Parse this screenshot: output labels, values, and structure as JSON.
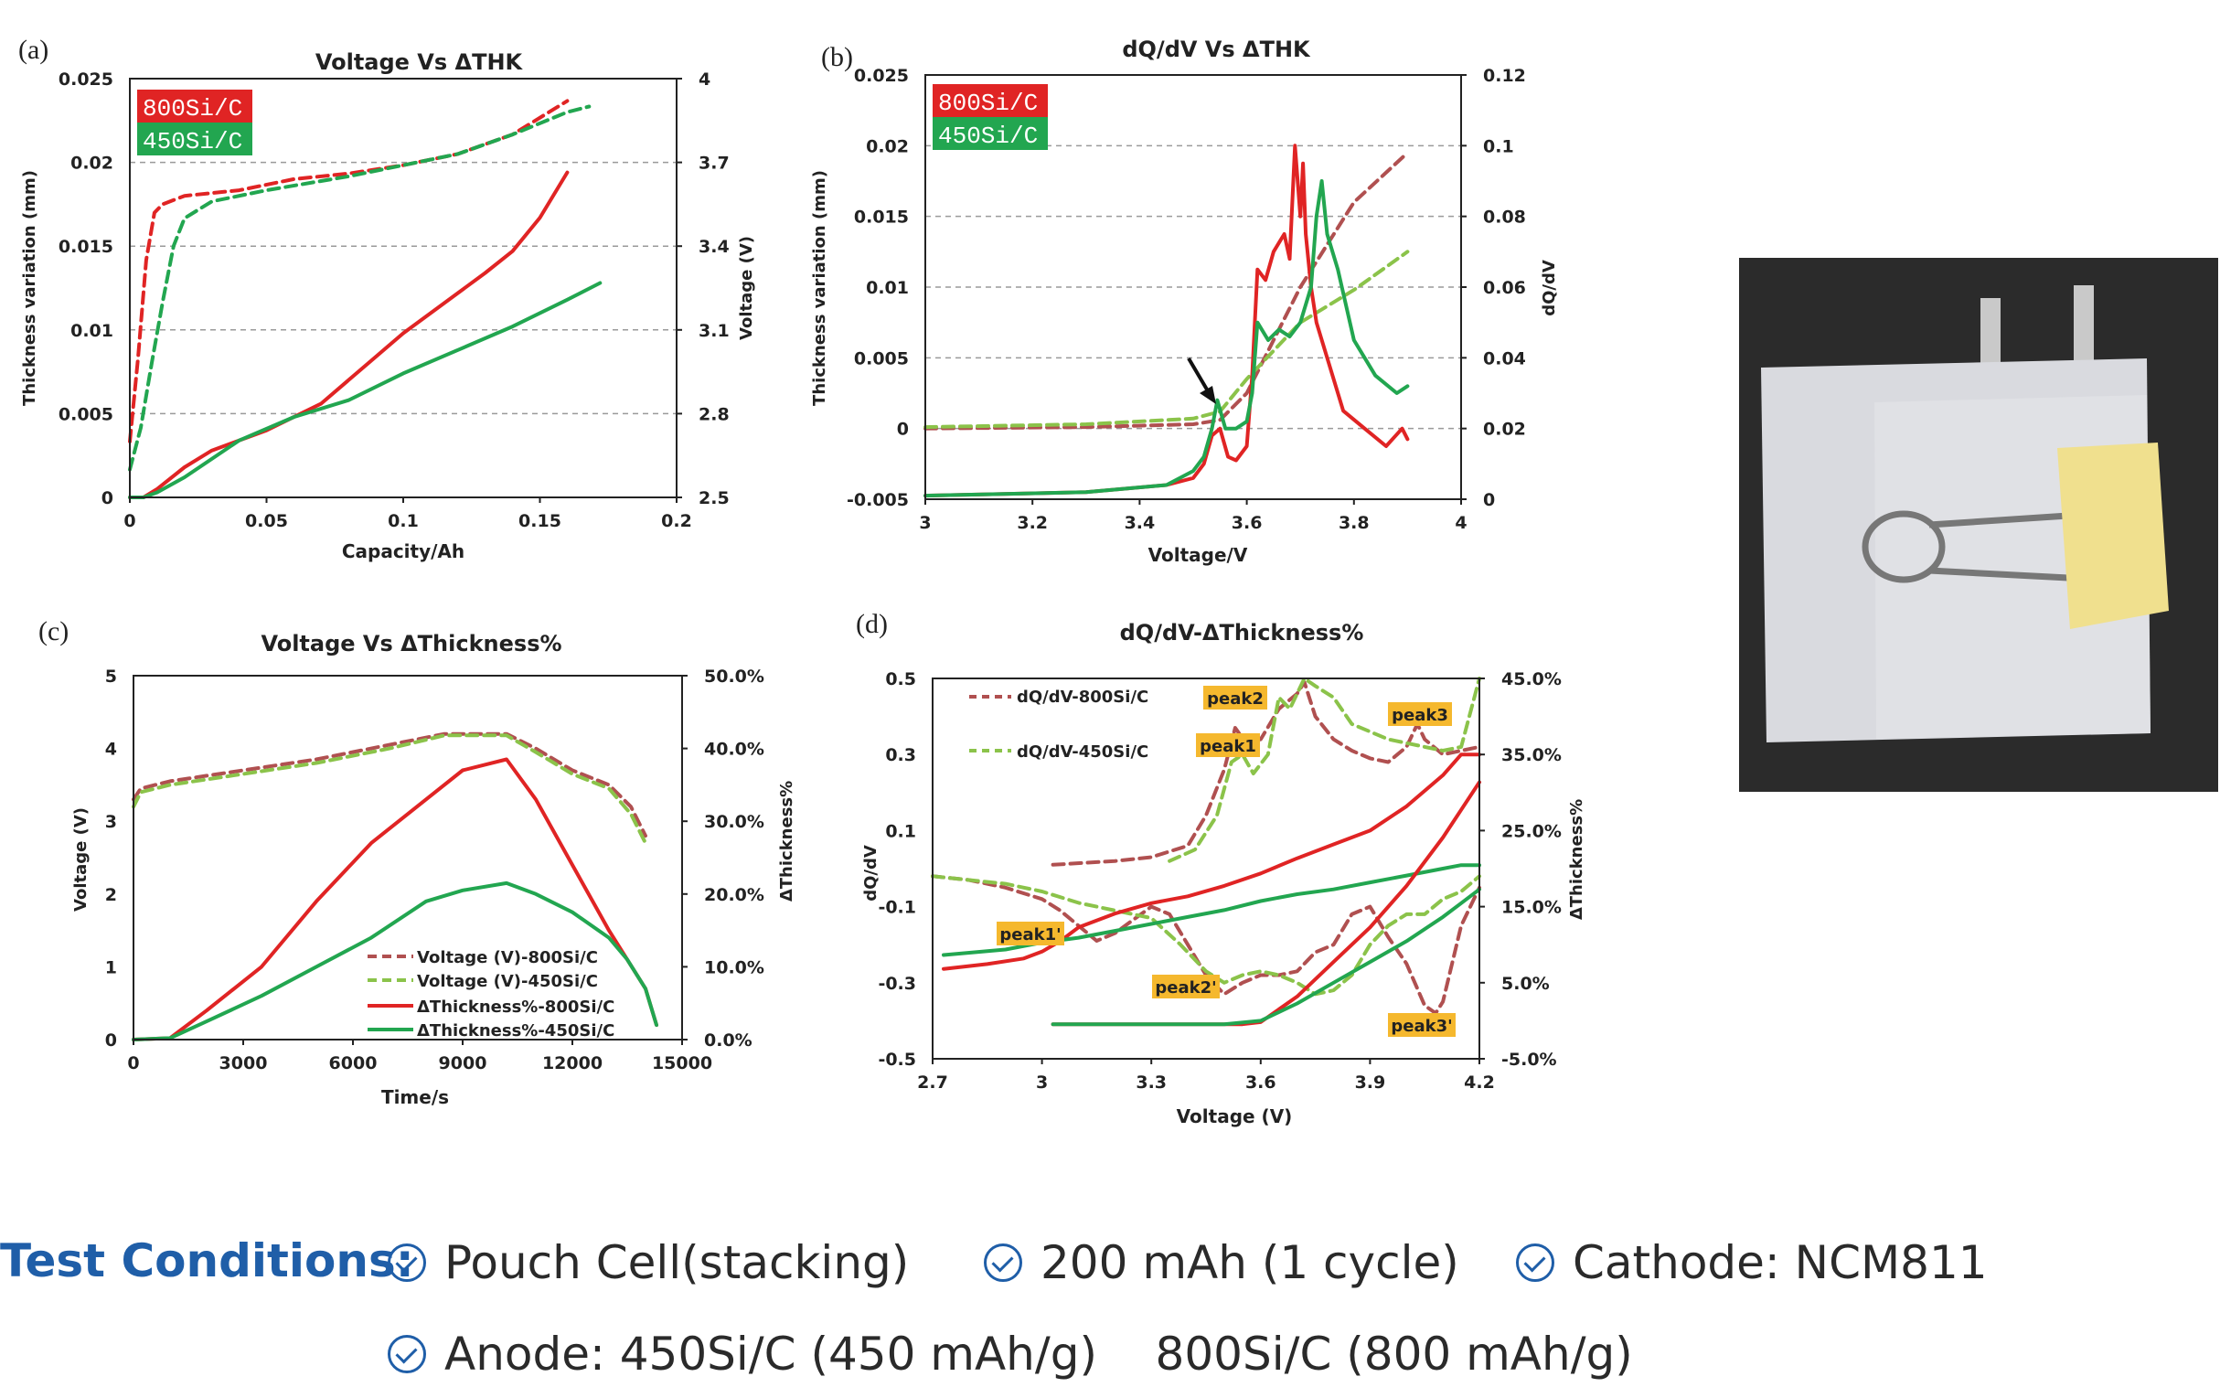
{
  "chart_data": [
    {
      "panel": "(a)",
      "type": "line",
      "title": "Voltage Vs ΔTHK",
      "xlabel": "Capacity/Ah",
      "ylabel": "Thickness variation (mm)",
      "y2label": "Voltage (V)",
      "xlim": [
        0,
        0.2
      ],
      "ylim": [
        0,
        0.025
      ],
      "y2lim": [
        2.5,
        4
      ],
      "xticks": [
        "0",
        "0.05",
        "0.1",
        "0.15",
        "0.2"
      ],
      "yticks": [
        "0",
        "0.005",
        "0.01",
        "0.015",
        "0.02",
        "0.025"
      ],
      "y2ticks": [
        "2.5",
        "2.8",
        "3.1",
        "3.4",
        "3.7",
        "4"
      ],
      "legend": [
        "800Si/C",
        "450Si/C"
      ],
      "series": [
        {
          "key": "thk800",
          "axis": "y",
          "color": "#e02424",
          "dash": false,
          "x": [
            0,
            0.005,
            0.01,
            0.02,
            0.03,
            0.05,
            0.07,
            0.09,
            0.1,
            0.12,
            0.13,
            0.14,
            0.15,
            0.16
          ],
          "y": [
            0,
            0,
            0.0005,
            0.0018,
            0.0028,
            0.004,
            0.0056,
            0.0084,
            0.0098,
            0.0122,
            0.0134,
            0.0147,
            0.0167,
            0.0194
          ]
        },
        {
          "key": "thk450",
          "axis": "y",
          "color": "#22a650",
          "dash": false,
          "x": [
            0,
            0.005,
            0.01,
            0.02,
            0.04,
            0.06,
            0.08,
            0.1,
            0.12,
            0.14,
            0.16,
            0.172
          ],
          "y": [
            0,
            0,
            0.0003,
            0.0012,
            0.0034,
            0.0048,
            0.0058,
            0.0074,
            0.0088,
            0.0102,
            0.0118,
            0.0128
          ]
        },
        {
          "key": "v800",
          "axis": "y2",
          "color": "#e02424",
          "dash": true,
          "x": [
            0,
            0.003,
            0.006,
            0.009,
            0.012,
            0.02,
            0.04,
            0.06,
            0.08,
            0.1,
            0.12,
            0.14,
            0.16
          ],
          "y": [
            2.7,
            3.0,
            3.35,
            3.52,
            3.55,
            3.58,
            3.6,
            3.64,
            3.66,
            3.69,
            3.73,
            3.8,
            3.92
          ]
        },
        {
          "key": "v450",
          "axis": "y2",
          "color": "#22a650",
          "dash": true,
          "x": [
            0,
            0.004,
            0.008,
            0.012,
            0.016,
            0.02,
            0.03,
            0.05,
            0.08,
            0.1,
            0.12,
            0.14,
            0.16,
            0.168
          ],
          "y": [
            2.6,
            2.75,
            2.98,
            3.2,
            3.4,
            3.5,
            3.56,
            3.6,
            3.65,
            3.69,
            3.73,
            3.8,
            3.88,
            3.9
          ]
        }
      ]
    },
    {
      "panel": "(b)",
      "type": "line",
      "title": "dQ/dV Vs ΔTHK",
      "xlabel": "Voltage/V",
      "ylabel": "Thickness variation (mm)",
      "y2label": "dQ/dV",
      "xlim": [
        3,
        4
      ],
      "ylim": [
        -0.005,
        0.025
      ],
      "y2lim": [
        0,
        0.12
      ],
      "xticks": [
        "3",
        "3.2",
        "3.4",
        "3.6",
        "3.8",
        "4"
      ],
      "yticks": [
        "-0.005",
        "0",
        "0.005",
        "0.01",
        "0.015",
        "0.02",
        "0.025"
      ],
      "y2ticks": [
        "0",
        "0.02",
        "0.04",
        "0.06",
        "0.08",
        "0.1",
        "0.12"
      ],
      "legend": [
        "800Si/C",
        "450Si/C"
      ],
      "series": [
        {
          "key": "thk800",
          "axis": "y",
          "color": "#b05050",
          "dash": true,
          "x": [
            3,
            3.3,
            3.5,
            3.55,
            3.6,
            3.7,
            3.8,
            3.9
          ],
          "y": [
            0,
            0.0001,
            0.0003,
            0.0006,
            0.0025,
            0.01,
            0.016,
            0.0195
          ]
        },
        {
          "key": "thk450",
          "axis": "y",
          "color": "#8bc34a",
          "dash": true,
          "x": [
            3,
            3.3,
            3.5,
            3.55,
            3.6,
            3.7,
            3.8,
            3.9
          ],
          "y": [
            0.0001,
            0.0003,
            0.0007,
            0.0012,
            0.0035,
            0.0075,
            0.0098,
            0.0125
          ]
        },
        {
          "key": "dq800",
          "axis": "y2",
          "color": "#e02424",
          "dash": false,
          "x": [
            3,
            3.3,
            3.45,
            3.5,
            3.52,
            3.535,
            3.55,
            3.565,
            3.58,
            3.6,
            3.61,
            3.62,
            3.635,
            3.65,
            3.67,
            3.68,
            3.69,
            3.7,
            3.705,
            3.71,
            3.72,
            3.73,
            3.75,
            3.78,
            3.82,
            3.86,
            3.89,
            3.9
          ],
          "y": [
            0.001,
            0.002,
            0.004,
            0.006,
            0.01,
            0.018,
            0.02,
            0.012,
            0.011,
            0.015,
            0.035,
            0.065,
            0.062,
            0.07,
            0.075,
            0.068,
            0.1,
            0.08,
            0.095,
            0.075,
            0.06,
            0.05,
            0.04,
            0.025,
            0.02,
            0.015,
            0.02,
            0.017
          ]
        },
        {
          "key": "dq450",
          "axis": "y2",
          "color": "#22a650",
          "dash": false,
          "x": [
            3,
            3.3,
            3.45,
            3.5,
            3.52,
            3.535,
            3.545,
            3.56,
            3.58,
            3.6,
            3.61,
            3.62,
            3.64,
            3.66,
            3.68,
            3.7,
            3.72,
            3.73,
            3.74,
            3.75,
            3.77,
            3.8,
            3.84,
            3.88,
            3.9
          ],
          "y": [
            0.001,
            0.002,
            0.004,
            0.008,
            0.012,
            0.02,
            0.028,
            0.02,
            0.02,
            0.022,
            0.03,
            0.05,
            0.045,
            0.048,
            0.046,
            0.05,
            0.06,
            0.08,
            0.09,
            0.075,
            0.065,
            0.045,
            0.035,
            0.03,
            0.032
          ]
        }
      ]
    },
    {
      "panel": "(c)",
      "type": "line",
      "title": "Voltage Vs ΔThickness%",
      "xlabel": "Time/s",
      "ylabel": "Voltage (V)",
      "y2label": "ΔThickness%",
      "xlim": [
        0,
        15000
      ],
      "ylim": [
        0,
        5
      ],
      "y2lim": [
        0,
        50
      ],
      "xticks": [
        "0",
        "3000",
        "6000",
        "9000",
        "12000",
        "15000"
      ],
      "yticks": [
        "0",
        "1",
        "2",
        "3",
        "4",
        "5"
      ],
      "y2ticks": [
        "0.0%",
        "10.0%",
        "20.0%",
        "30.0%",
        "40.0%",
        "50.0%"
      ],
      "legend": [
        "Voltage (V)-800Si/C",
        "Voltage (V)-450Si/C",
        "ΔThickness%-800Si/C",
        "ΔThickness%-450Si/C"
      ],
      "series": [
        {
          "key": "v800",
          "axis": "y",
          "color": "#b05050",
          "dash": true,
          "x": [
            0,
            200,
            1000,
            3000,
            5000,
            7000,
            8500,
            10200,
            11000,
            12000,
            13000,
            13600,
            14000
          ],
          "y": [
            3.3,
            3.45,
            3.55,
            3.7,
            3.85,
            4.05,
            4.2,
            4.2,
            4.0,
            3.7,
            3.5,
            3.2,
            2.8
          ]
        },
        {
          "key": "v450",
          "axis": "y",
          "color": "#8bc34a",
          "dash": true,
          "x": [
            0,
            200,
            1000,
            3000,
            5000,
            7000,
            8500,
            10200,
            11000,
            12000,
            13000,
            13600,
            14000
          ],
          "y": [
            3.2,
            3.4,
            3.5,
            3.65,
            3.8,
            4.0,
            4.18,
            4.18,
            3.95,
            3.65,
            3.45,
            3.1,
            2.7
          ]
        },
        {
          "key": "thk800",
          "axis": "y2",
          "color": "#e02424",
          "dash": false,
          "x": [
            0,
            1000,
            2000,
            3500,
            5000,
            6500,
            8000,
            9000,
            10200,
            11000,
            12000,
            13000,
            13500,
            14000,
            14300
          ],
          "y": [
            0,
            0.2,
            4,
            10,
            19,
            27,
            33,
            37,
            38.5,
            33,
            24,
            15,
            11,
            7,
            2
          ]
        },
        {
          "key": "thk450",
          "axis": "y2",
          "color": "#22a650",
          "dash": false,
          "x": [
            0,
            1000,
            2000,
            3500,
            5000,
            6500,
            8000,
            9000,
            10200,
            11000,
            12000,
            13000,
            13500,
            14000,
            14300
          ],
          "y": [
            0,
            0.2,
            2.5,
            6,
            10,
            14,
            19,
            20.5,
            21.5,
            20,
            17.5,
            14,
            11,
            7,
            2
          ]
        }
      ]
    },
    {
      "panel": "(d)",
      "type": "line",
      "title": "dQ/dV-ΔThickness%",
      "xlabel": "Voltage (V)",
      "ylabel": "dQ/dV",
      "y2label": "ΔThickness%",
      "xlim": [
        2.7,
        4.2
      ],
      "ylim": [
        -0.5,
        0.5
      ],
      "y2lim": [
        -5,
        50
      ],
      "xticks": [
        "2.7",
        "3",
        "3.3",
        "3.6",
        "3.9",
        "4.2"
      ],
      "yticks": [
        "-0.5",
        "-0.3",
        "-0.1",
        "0.1",
        "0.3",
        "0.5"
      ],
      "y2ticks": [
        "-5.0%",
        "5.0%",
        "15.0%",
        "25.0%",
        "35.0%",
        "45.0%"
      ],
      "legend": [
        "dQ/dV-800Si/C",
        "dQ/dV-450Si/C"
      ],
      "annotations": [
        "peak1",
        "peak2",
        "peak3",
        "peak1'",
        "peak2'",
        "peak3'"
      ],
      "series": [
        {
          "key": "dqc800",
          "axis": "y",
          "color": "#b05050",
          "dash": true,
          "x": [
            3.03,
            3.2,
            3.3,
            3.4,
            3.45,
            3.5,
            3.53,
            3.56,
            3.6,
            3.65,
            3.7,
            3.72,
            3.75,
            3.8,
            3.85,
            3.9,
            3.95,
            4.0,
            4.03,
            4.05,
            4.1,
            4.15,
            4.2
          ],
          "y": [
            0.01,
            0.02,
            0.03,
            0.06,
            0.14,
            0.26,
            0.37,
            0.33,
            0.34,
            0.42,
            0.46,
            0.49,
            0.4,
            0.34,
            0.31,
            0.29,
            0.28,
            0.32,
            0.38,
            0.34,
            0.3,
            0.31,
            0.32
          ]
        },
        {
          "key": "dqc450",
          "axis": "y",
          "color": "#8bc34a",
          "dash": true,
          "x": [
            3.35,
            3.42,
            3.48,
            3.52,
            3.55,
            3.58,
            3.62,
            3.65,
            3.68,
            3.72,
            3.75,
            3.8,
            3.85,
            3.9,
            3.95,
            4.0,
            4.05,
            4.1,
            4.15,
            4.2
          ],
          "y": [
            0.02,
            0.05,
            0.14,
            0.28,
            0.3,
            0.25,
            0.3,
            0.45,
            0.42,
            0.5,
            0.48,
            0.45,
            0.38,
            0.36,
            0.34,
            0.33,
            0.32,
            0.31,
            0.32,
            0.5
          ]
        },
        {
          "key": "dqd800",
          "axis": "y",
          "color": "#b05050",
          "dash": true,
          "x": [
            2.7,
            2.8,
            2.9,
            3.0,
            3.05,
            3.1,
            3.15,
            3.2,
            3.3,
            3.35,
            3.4,
            3.45,
            3.5,
            3.55,
            3.6,
            3.65,
            3.7,
            3.75,
            3.8,
            3.85,
            3.9,
            3.95,
            4.0,
            4.05,
            4.08,
            4.1,
            4.15,
            4.2
          ],
          "y": [
            -0.02,
            -0.03,
            -0.05,
            -0.08,
            -0.11,
            -0.15,
            -0.19,
            -0.17,
            -0.1,
            -0.12,
            -0.2,
            -0.28,
            -0.33,
            -0.3,
            -0.28,
            -0.28,
            -0.27,
            -0.22,
            -0.2,
            -0.12,
            -0.1,
            -0.18,
            -0.25,
            -0.36,
            -0.38,
            -0.35,
            -0.15,
            -0.05
          ]
        },
        {
          "key": "dqd450",
          "axis": "y",
          "color": "#8bc34a",
          "dash": true,
          "x": [
            2.7,
            2.8,
            2.9,
            3.0,
            3.1,
            3.2,
            3.3,
            3.38,
            3.45,
            3.5,
            3.55,
            3.6,
            3.65,
            3.7,
            3.75,
            3.8,
            3.85,
            3.9,
            3.95,
            4.0,
            4.05,
            4.1,
            4.15,
            4.2
          ],
          "y": [
            -0.02,
            -0.03,
            -0.04,
            -0.06,
            -0.09,
            -0.11,
            -0.13,
            -0.2,
            -0.27,
            -0.3,
            -0.28,
            -0.27,
            -0.28,
            -0.3,
            -0.33,
            -0.32,
            -0.28,
            -0.2,
            -0.15,
            -0.12,
            -0.12,
            -0.08,
            -0.06,
            -0.02
          ]
        },
        {
          "key": "thkc800",
          "axis": "y2",
          "color": "#e02424",
          "dash": false,
          "x": [
            2.73,
            2.85,
            2.95,
            3.0,
            3.05,
            3.1,
            3.2,
            3.3,
            3.4,
            3.5,
            3.6,
            3.7,
            3.8,
            3.9,
            4.0,
            4.1,
            4.15,
            4.2
          ],
          "y": [
            8,
            8.7,
            9.5,
            10.5,
            12,
            14,
            16,
            17.5,
            18.5,
            20,
            21.8,
            24,
            26,
            28,
            31.5,
            36,
            39,
            39
          ]
        },
        {
          "key": "thkc450",
          "axis": "y2",
          "color": "#22a650",
          "dash": false,
          "x": [
            2.73,
            2.9,
            3.0,
            3.1,
            3.2,
            3.3,
            3.4,
            3.5,
            3.6,
            3.7,
            3.8,
            3.9,
            4.0,
            4.1,
            4.15,
            4.2
          ],
          "y": [
            10,
            10.8,
            11.8,
            12.5,
            13.5,
            14.5,
            15.5,
            16.5,
            17.8,
            18.8,
            19.5,
            20.5,
            21.5,
            22.5,
            23,
            23
          ]
        },
        {
          "key": "thkd800",
          "axis": "y2",
          "color": "#e02424",
          "dash": false,
          "x": [
            3.03,
            3.2,
            3.4,
            3.5,
            3.55,
            3.6,
            3.7,
            3.8,
            3.9,
            4.0,
            4.1,
            4.15,
            4.2
          ],
          "y": [
            0,
            0,
            0,
            0,
            0,
            0.3,
            4,
            9,
            14,
            20,
            27,
            31,
            35
          ]
        },
        {
          "key": "thkd450",
          "axis": "y2",
          "color": "#22a650",
          "dash": false,
          "x": [
            3.03,
            3.2,
            3.4,
            3.5,
            3.6,
            3.7,
            3.8,
            3.9,
            4.0,
            4.1,
            4.15,
            4.2
          ],
          "y": [
            0,
            0,
            0,
            0,
            0.5,
            3,
            6,
            9,
            12,
            15.5,
            17.5,
            19.5
          ]
        }
      ]
    }
  ],
  "conditions": {
    "title": "Test Conditions:",
    "items": [
      "Pouch Cell(stacking)",
      "200 mAh (1 cycle)",
      "Cathode: NCM811",
      "Anode: 450Si/C (450 mAh/g)    800Si/C (800 mAh/g)"
    ]
  },
  "photo": {
    "subject": "pouch cell with binder clip",
    "colors": {
      "background": "#2b2b2b",
      "pouch": "#d9dadf",
      "clip": "#f0e08e",
      "tab": "#c9c9c9"
    }
  }
}
